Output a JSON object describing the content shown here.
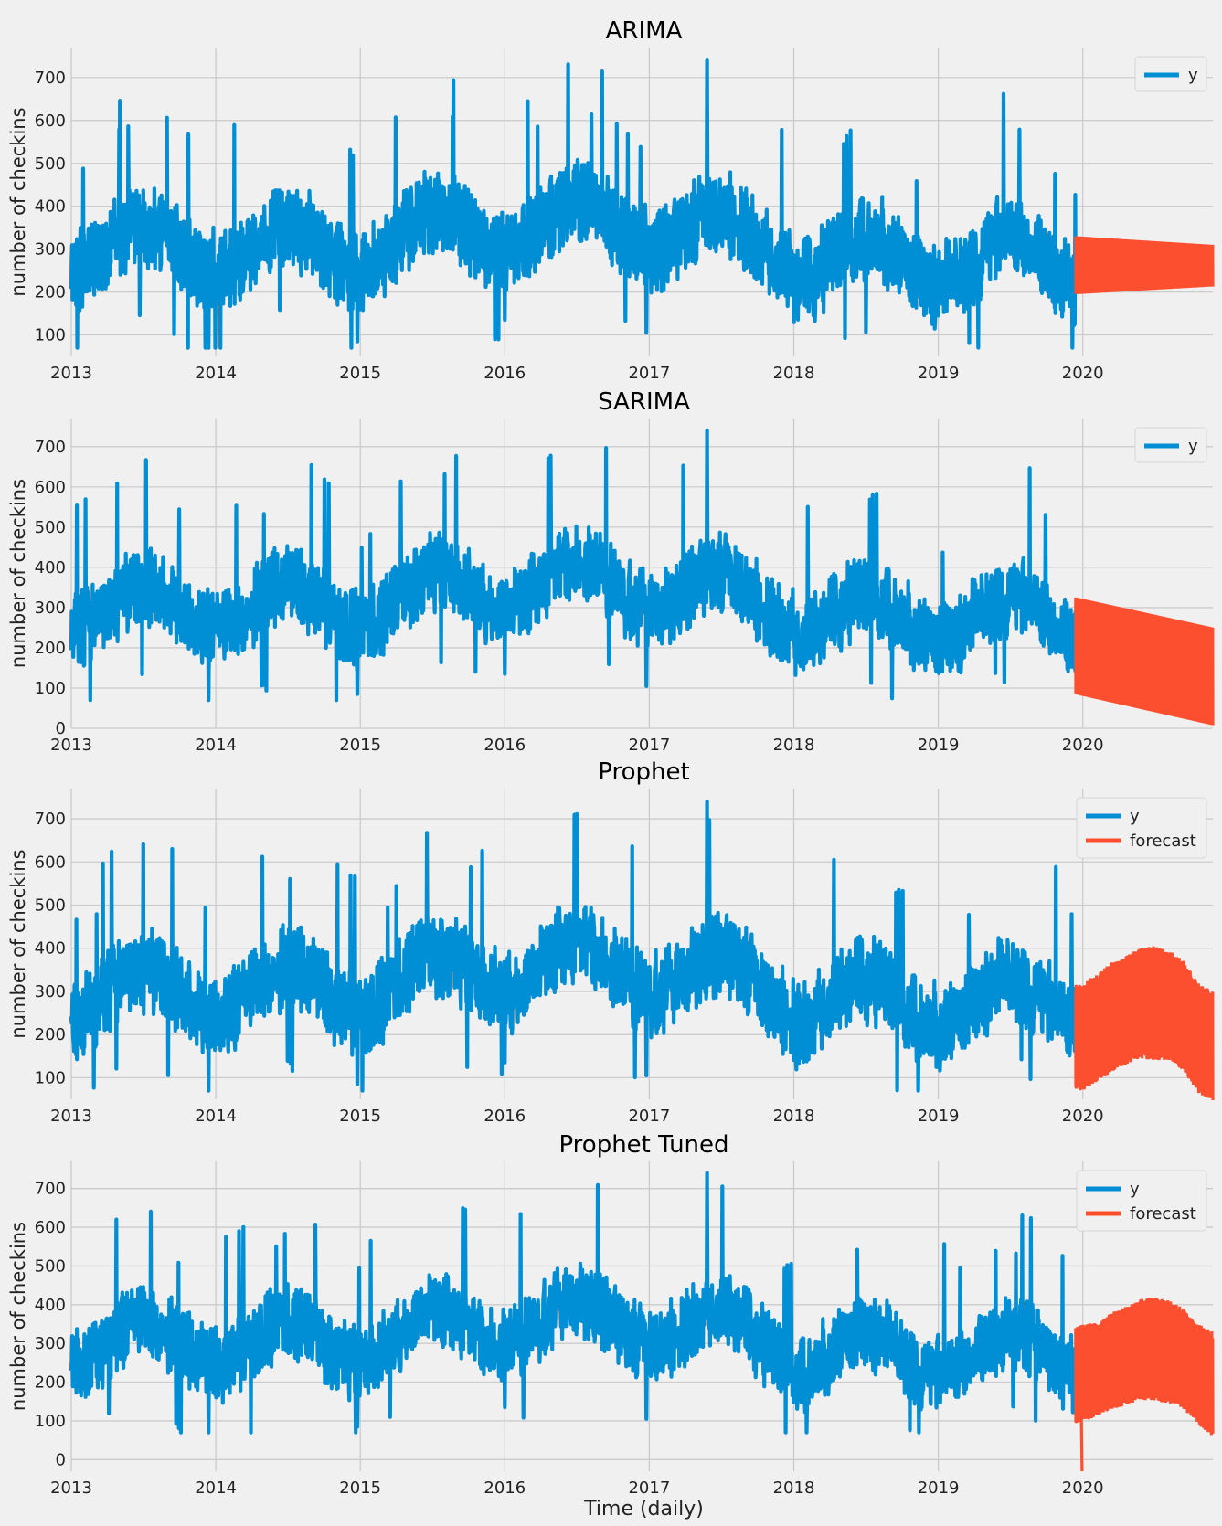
{
  "colors": {
    "y": "#008fd5",
    "forecast": "#fc4f30",
    "background": "#f0f0f0",
    "grid": "#cbcbcb"
  },
  "xlabel": "Time (daily)",
  "chart_data": [
    {
      "type": "line",
      "title": "ARIMA",
      "ylabel": "number of checkins",
      "xlabel": "",
      "xlim": [
        2013.0,
        2020.9
      ],
      "ylim": [
        50,
        770
      ],
      "x_ticks": [
        "2013",
        "2014",
        "2015",
        "2016",
        "2017",
        "2018",
        "2019",
        "2020"
      ],
      "y_ticks": [
        100,
        200,
        300,
        400,
        500,
        600,
        700
      ],
      "grid": true,
      "legend": {
        "position": "top-right",
        "entries": [
          "y"
        ]
      },
      "series": [
        {
          "name": "y",
          "kind": "observed",
          "x_start": 2013.0,
          "x_end": 2019.95,
          "low": 180,
          "high": 460,
          "min": 70,
          "max": 740
        },
        {
          "name": "forecast",
          "kind": "band",
          "x": [
            2019.95,
            2020.9
          ],
          "low": [
            195,
            213
          ],
          "high": [
            330,
            310
          ]
        }
      ]
    },
    {
      "type": "line",
      "title": "SARIMA",
      "ylabel": "number of checkins",
      "xlabel": "",
      "xlim": [
        2013.0,
        2020.9
      ],
      "ylim": [
        0,
        770
      ],
      "x_ticks": [
        "2013",
        "2014",
        "2015",
        "2016",
        "2017",
        "2018",
        "2019",
        "2020"
      ],
      "y_ticks": [
        0,
        100,
        200,
        300,
        400,
        500,
        600,
        700
      ],
      "grid": true,
      "legend": {
        "position": "top-right",
        "entries": [
          "y"
        ]
      },
      "series": [
        {
          "name": "y",
          "kind": "observed",
          "x_start": 2013.0,
          "x_end": 2019.95,
          "low": 180,
          "high": 460,
          "min": 70,
          "max": 740
        },
        {
          "name": "forecast",
          "kind": "band",
          "x": [
            2019.95,
            2020.9
          ],
          "low": [
            85,
            8
          ],
          "high": [
            325,
            250
          ]
        }
      ]
    },
    {
      "type": "line",
      "title": "Prophet",
      "ylabel": "number of checkins",
      "xlabel": "",
      "xlim": [
        2013.0,
        2020.9
      ],
      "ylim": [
        50,
        770
      ],
      "x_ticks": [
        "2013",
        "2014",
        "2015",
        "2016",
        "2017",
        "2018",
        "2019",
        "2020"
      ],
      "y_ticks": [
        100,
        200,
        300,
        400,
        500,
        600,
        700
      ],
      "grid": true,
      "legend": {
        "position": "top-right",
        "entries": [
          "y",
          "forecast"
        ]
      },
      "series": [
        {
          "name": "y",
          "kind": "observed",
          "x_start": 2013.0,
          "x_end": 2019.95,
          "low": 180,
          "high": 460,
          "min": 70,
          "max": 740
        },
        {
          "name": "forecast",
          "kind": "band",
          "x": [
            2019.95,
            2020.0,
            2020.1,
            2020.2,
            2020.3,
            2020.4,
            2020.5,
            2020.6,
            2020.7,
            2020.8,
            2020.9
          ],
          "low": [
            75,
            80,
            100,
            125,
            140,
            155,
            150,
            150,
            125,
            75,
            55
          ],
          "high": [
            310,
            310,
            330,
            360,
            375,
            390,
            395,
            385,
            360,
            310,
            290
          ]
        }
      ]
    },
    {
      "type": "line",
      "title": "Prophet Tuned",
      "ylabel": "number of checkins",
      "xlabel": "Time (daily)",
      "xlim": [
        2013.0,
        2020.9
      ],
      "ylim": [
        -30,
        770
      ],
      "x_ticks": [
        "2013",
        "2014",
        "2015",
        "2016",
        "2017",
        "2018",
        "2019",
        "2020"
      ],
      "y_ticks": [
        0,
        100,
        200,
        300,
        400,
        500,
        600,
        700
      ],
      "grid": true,
      "legend": {
        "position": "top-right",
        "entries": [
          "y",
          "forecast"
        ]
      },
      "series": [
        {
          "name": "y",
          "kind": "observed",
          "x_start": 2013.0,
          "x_end": 2019.95,
          "low": 180,
          "high": 460,
          "min": 70,
          "max": 740
        },
        {
          "name": "forecast",
          "kind": "band",
          "x": [
            2019.95,
            2020.0,
            2020.1,
            2020.2,
            2020.3,
            2020.4,
            2020.5,
            2020.6,
            2020.7,
            2020.8,
            2020.9
          ],
          "low": [
            100,
            110,
            120,
            140,
            150,
            165,
            160,
            155,
            140,
            100,
            70
          ],
          "high": [
            330,
            340,
            345,
            370,
            385,
            405,
            410,
            400,
            380,
            340,
            320
          ],
          "min": -30,
          "max": 415
        }
      ]
    }
  ]
}
